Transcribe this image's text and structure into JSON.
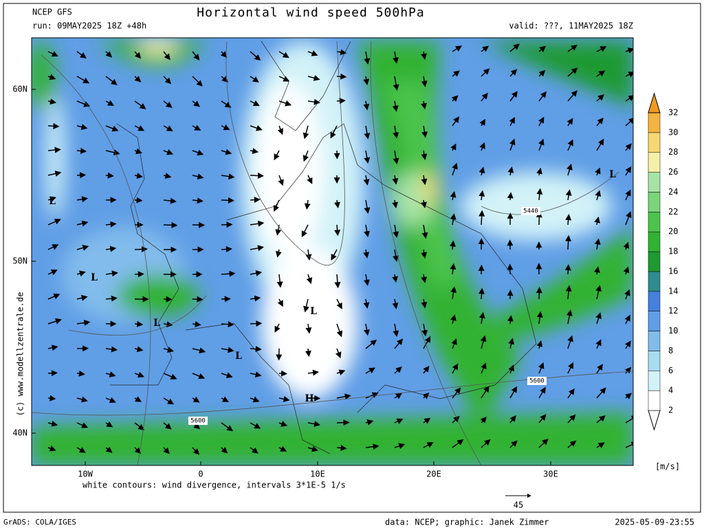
{
  "header": {
    "model": "NCEP GFS",
    "title": "Horizontal wind speed 500hPa",
    "run": "run: 09MAY2025 18Z +48h",
    "valid": "valid: ???, 11MAY2025 18Z"
  },
  "map": {
    "lat_labels": [
      "60N",
      "50N",
      "40N"
    ],
    "lon_labels": [
      "10W",
      "0",
      "10E",
      "20E",
      "30E"
    ],
    "pressure_labels": [
      "L",
      "L",
      "L",
      "L",
      "L",
      "L",
      "H"
    ],
    "height_labels": [
      "5440",
      "5600",
      "5600"
    ]
  },
  "colorbar": {
    "levels": [
      2,
      4,
      6,
      8,
      10,
      12,
      14,
      16,
      18,
      20,
      22,
      24,
      26,
      28,
      30,
      32
    ],
    "colors": [
      "#ffffff",
      "#ffffff",
      "#d2f2f8",
      "#a8dcf0",
      "#82bcec",
      "#609ee6",
      "#4480dc",
      "#2e8c8e",
      "#1e9a32",
      "#30b232",
      "#4cc44c",
      "#7ad47a",
      "#a6e4a6",
      "#f4f0a8",
      "#f8d872",
      "#f4b440",
      "#f09a20"
    ],
    "unit": "[m/s]"
  },
  "footer": {
    "divergence_note": "white contours: wind divergence, intervals 3*1E-5 1/s",
    "arrow_scale": "45",
    "copyright": "(c) www.modellzentrale.de",
    "software": "GrADS: COLA/IGES",
    "credits": "data: NCEP; graphic: Janek Zimmer",
    "timestamp": "2025-05-09-23:55"
  }
}
